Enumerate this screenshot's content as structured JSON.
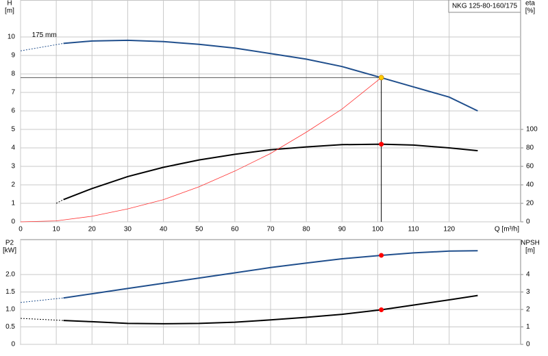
{
  "chart_data": [
    {
      "type": "line",
      "title": "NKG 125-80-160/175",
      "x_label": "Q [m³/h]",
      "y_label": [
        "H",
        "[m]"
      ],
      "y2_label": [
        "eta",
        "[%]"
      ],
      "xlim": [
        0,
        140
      ],
      "xticks": [
        0,
        10,
        20,
        30,
        40,
        50,
        60,
        70,
        80,
        90,
        100,
        110,
        120
      ],
      "ylim": [
        0,
        12
      ],
      "yticks": [
        0,
        1,
        2,
        3,
        4,
        5,
        6,
        7,
        8,
        9,
        10
      ],
      "y2lim": [
        0,
        240
      ],
      "y2ticks": [
        0,
        20,
        40,
        60,
        80,
        100
      ],
      "grid": true,
      "series": [
        {
          "color": "#1f4e8c",
          "style": "dashed",
          "axis": "y",
          "x": [
            0,
            12
          ],
          "values": [
            9.25,
            9.65
          ]
        },
        {
          "name": "175 mm",
          "color": "#1f4e8c",
          "style": "solid",
          "axis": "y",
          "x": [
            12,
            20,
            30,
            40,
            50,
            60,
            70,
            80,
            90,
            101,
            110,
            120,
            128
          ],
          "values": [
            9.65,
            9.78,
            9.82,
            9.75,
            9.6,
            9.4,
            9.1,
            8.8,
            8.4,
            7.8,
            7.3,
            6.75,
            6.0
          ]
        },
        {
          "color": "#000000",
          "style": "dashed",
          "axis": "y2",
          "x": [
            10,
            12
          ],
          "values": [
            20,
            24
          ]
        },
        {
          "color": "#000000",
          "style": "solid",
          "axis": "y2",
          "x": [
            12,
            20,
            30,
            40,
            50,
            60,
            70,
            80,
            90,
            101,
            110,
            120,
            128
          ],
          "values": [
            24,
            36,
            49,
            59,
            67,
            73,
            78,
            81,
            83.5,
            84,
            83,
            80,
            77
          ]
        },
        {
          "color": "#ff3030",
          "style": "thin",
          "axis": "y",
          "x": [
            0,
            10,
            20,
            30,
            40,
            50,
            60,
            70,
            80,
            90,
            101
          ],
          "values": [
            0,
            0.05,
            0.3,
            0.7,
            1.2,
            1.9,
            2.75,
            3.7,
            4.85,
            6.1,
            7.8
          ]
        }
      ],
      "markers": [
        {
          "x": 101,
          "y": 7.8,
          "axis": "y",
          "color": "#ffcc00",
          "guides": true
        },
        {
          "x": 101,
          "y": 84,
          "axis": "y2",
          "color": "#ff0000"
        }
      ]
    },
    {
      "type": "line",
      "y_label": [
        "P2",
        "[kW]"
      ],
      "y2_label": [
        "NPSH",
        "[m]"
      ],
      "xlim": [
        0,
        140
      ],
      "xticks": [
        0,
        10,
        20,
        30,
        40,
        50,
        60,
        70,
        80,
        90,
        100,
        110,
        120
      ],
      "ylim": [
        0,
        3
      ],
      "yticks": [
        0,
        0.5,
        {
          "value": 1,
          "label": "1.0"
        },
        1.5,
        {
          "value": 2,
          "label": "2.0"
        }
      ],
      "y2lim": [
        0,
        6
      ],
      "y2ticks": [
        0,
        1,
        2,
        3,
        4
      ],
      "grid": true,
      "series": [
        {
          "color": "#1f4e8c",
          "style": "dashed",
          "axis": "y",
          "x": [
            0,
            12
          ],
          "values": [
            1.2,
            1.33
          ]
        },
        {
          "color": "#1f4e8c",
          "style": "solid",
          "axis": "y",
          "x": [
            12,
            20,
            30,
            40,
            50,
            60,
            70,
            80,
            90,
            101,
            110,
            120,
            128
          ],
          "values": [
            1.33,
            1.45,
            1.6,
            1.75,
            1.9,
            2.05,
            2.2,
            2.33,
            2.45,
            2.55,
            2.62,
            2.67,
            2.68
          ]
        },
        {
          "color": "#000000",
          "style": "dashed",
          "axis": "y2",
          "x": [
            0,
            12
          ],
          "values": [
            1.49,
            1.37
          ]
        },
        {
          "color": "#000000",
          "style": "solid",
          "axis": "y2",
          "x": [
            12,
            20,
            30,
            40,
            50,
            60,
            70,
            80,
            90,
            101,
            110,
            120,
            128
          ],
          "values": [
            1.37,
            1.3,
            1.2,
            1.18,
            1.2,
            1.27,
            1.4,
            1.55,
            1.72,
            1.98,
            2.25,
            2.55,
            2.8
          ]
        }
      ],
      "markers": [
        {
          "x": 101,
          "y": 2.55,
          "axis": "y",
          "color": "#ff0000"
        },
        {
          "x": 101,
          "y": 1.98,
          "axis": "y2",
          "color": "#ff0000"
        }
      ]
    }
  ]
}
